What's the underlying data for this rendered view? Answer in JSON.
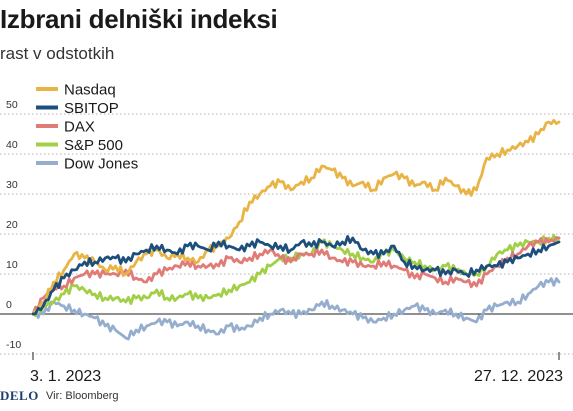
{
  "header": {
    "title": "Izbrani delniški indeksi",
    "subtitle": "rast v odstotkih"
  },
  "footer": {
    "brand": "DELO",
    "source": "Vir: Bloomberg"
  },
  "chart_data": {
    "type": "line",
    "title": "Izbrani delniški indeksi",
    "subtitle": "rast v odstotkih",
    "xlabel": "",
    "ylabel": "",
    "x_start": "3. 1. 2023",
    "x_end": "27. 12. 2023",
    "x_tick_labels": [
      "3. 1. 2023",
      "27. 12. 2023"
    ],
    "ylim": [
      -10,
      52
    ],
    "y_ticks": [
      -10,
      0,
      10,
      20,
      30,
      40,
      50
    ],
    "grid": "horizontal dotted",
    "legend_position": "top-left",
    "x": [
      "3. 1.",
      "10. 1.",
      "17. 1.",
      "24. 1.",
      "31. 1.",
      "7. 2.",
      "14. 2.",
      "21. 2.",
      "28. 2.",
      "7. 3.",
      "14. 3.",
      "21. 3.",
      "28. 3.",
      "4. 4.",
      "11. 4.",
      "18. 4.",
      "25. 4.",
      "2. 5.",
      "9. 5.",
      "16. 5.",
      "23. 5.",
      "30. 5.",
      "6. 6.",
      "13. 6.",
      "20. 6.",
      "27. 6.",
      "4. 7.",
      "11. 7.",
      "18. 7.",
      "25. 7.",
      "1. 8.",
      "8. 8.",
      "15. 8.",
      "22. 8.",
      "29. 8.",
      "5. 9.",
      "12. 9.",
      "19. 9.",
      "26. 9.",
      "3. 10.",
      "10. 10.",
      "17. 10.",
      "24. 10.",
      "31. 10.",
      "7. 11.",
      "14. 11.",
      "21. 11.",
      "28. 11.",
      "5. 12.",
      "12. 12.",
      "19. 12.",
      "27. 12."
    ],
    "series": [
      {
        "name": "Nasdaq",
        "color": "#e8b446",
        "values": [
          0,
          3,
          8,
          11,
          15,
          14,
          13,
          11,
          12,
          10,
          13,
          15,
          16,
          14,
          15,
          14,
          13,
          16,
          17,
          19,
          23,
          28,
          30,
          32,
          33,
          31,
          33,
          34,
          37,
          36,
          34,
          32,
          33,
          31,
          34,
          35,
          34,
          32,
          33,
          31,
          34,
          32,
          30,
          31,
          39,
          40,
          41,
          42,
          43,
          45,
          48,
          48
        ]
      },
      {
        "name": "SBITOP",
        "color": "#1d4f7c",
        "values": [
          0,
          2,
          6,
          9,
          11,
          13,
          13,
          14,
          14,
          13,
          15,
          16,
          17,
          16,
          15,
          17,
          17,
          16,
          18,
          17,
          16,
          17,
          18,
          17,
          17,
          16,
          18,
          17,
          18,
          17,
          18,
          19,
          16,
          15,
          15,
          17,
          13,
          12,
          11,
          11,
          10,
          11,
          10,
          11,
          12,
          12,
          13,
          14,
          15,
          16,
          17,
          18
        ]
      },
      {
        "name": "DAX",
        "color": "#e07b78",
        "values": [
          0,
          4,
          7,
          7,
          9,
          10,
          10,
          10,
          10,
          11,
          9,
          8,
          10,
          11,
          12,
          13,
          12,
          12,
          12,
          14,
          13,
          14,
          15,
          16,
          14,
          13,
          15,
          15,
          16,
          14,
          13,
          13,
          12,
          12,
          13,
          12,
          11,
          9,
          10,
          9,
          8,
          9,
          8,
          7,
          10,
          12,
          14,
          15,
          17,
          18,
          18,
          19
        ]
      },
      {
        "name": "S&P 500",
        "color": "#a1cf45",
        "values": [
          0,
          2,
          3,
          5,
          7,
          6,
          5,
          4,
          4,
          3,
          4,
          4,
          6,
          4,
          4,
          5,
          4,
          4,
          5,
          6,
          7,
          8,
          10,
          12,
          14,
          14,
          15,
          15,
          18,
          17,
          16,
          15,
          14,
          13,
          15,
          16,
          14,
          13,
          12,
          11,
          12,
          11,
          10,
          10,
          12,
          15,
          16,
          17,
          18,
          18,
          19,
          19
        ]
      },
      {
        "name": "Dow Jones",
        "color": "#96aece",
        "values": [
          0,
          0,
          3,
          2,
          1,
          0,
          -1,
          -3,
          -4,
          -6,
          -4,
          -3,
          -2,
          -2,
          -3,
          -2,
          -3,
          -4,
          -5,
          -3,
          -4,
          -3,
          -1,
          0,
          1,
          0,
          0,
          1,
          3,
          2,
          1,
          0,
          -1,
          -2,
          -1,
          0,
          1,
          2,
          1,
          0,
          1,
          0,
          -1,
          -2,
          1,
          2,
          3,
          3,
          5,
          7,
          8,
          8
        ]
      }
    ]
  }
}
